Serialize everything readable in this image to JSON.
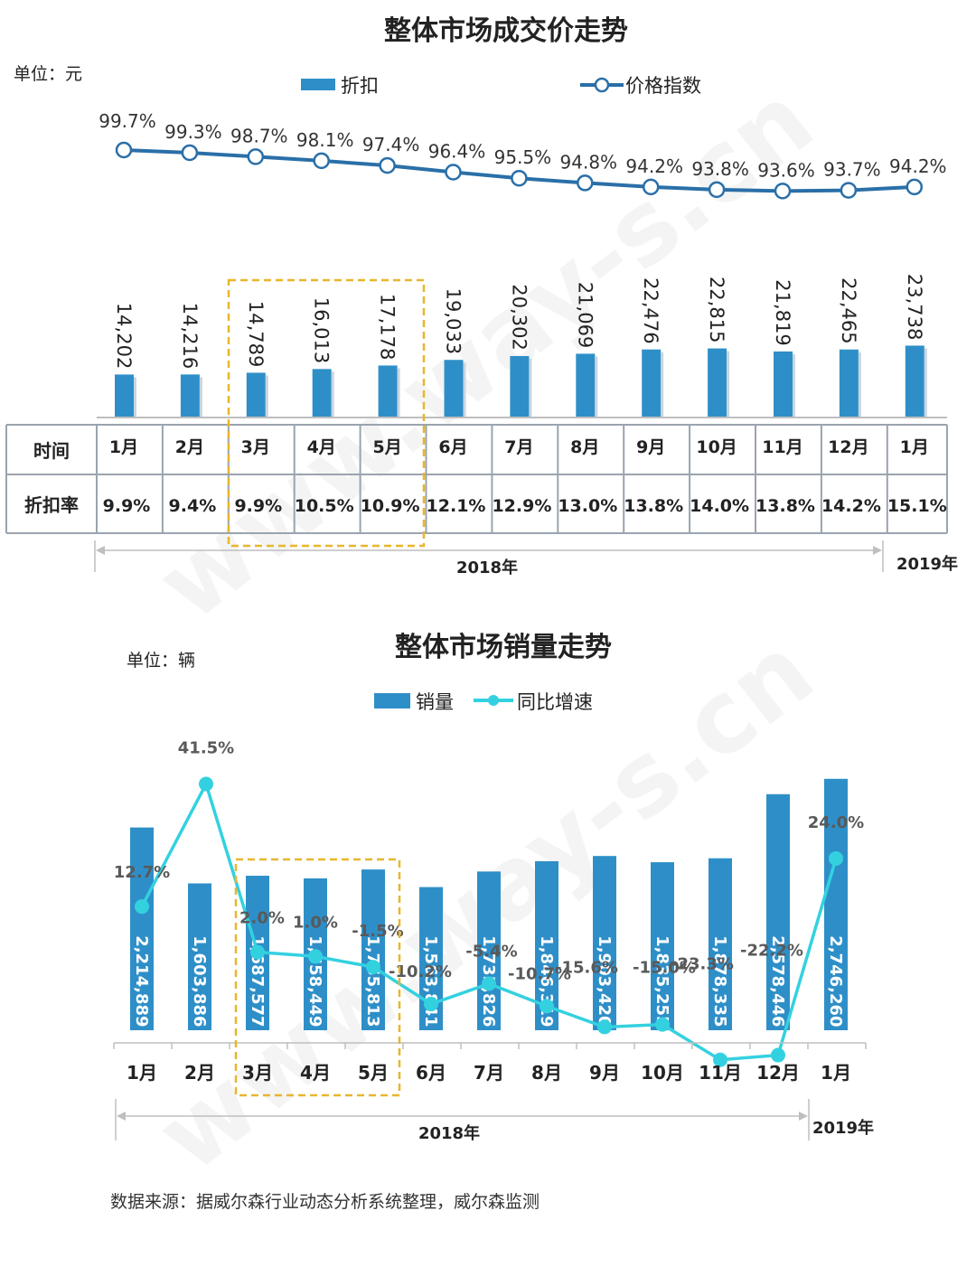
{
  "price_chart": {
    "title": "整体市场成交价走势",
    "unit": "单位：元",
    "legend": {
      "bar": "折扣",
      "line": "价格指数"
    },
    "table_headers": {
      "time": "时间",
      "rate": "折扣率"
    },
    "year_labels": {
      "y2018": "2018年",
      "y2019": "2019年"
    },
    "colors": {
      "bar": "#2e8fc8",
      "line": "#2a6fa8",
      "table_border": "#9aa4ae",
      "highlight": "#e8b62c"
    }
  },
  "sales_chart": {
    "title": "整体市场销量走势",
    "unit": "单位：辆",
    "legend": {
      "bar": "销量",
      "line": "同比增速"
    },
    "year_labels": {
      "y2018": "2018年",
      "y2019": "2019年"
    },
    "colors": {
      "bar": "#2e8fc8",
      "line": "#33d1e0",
      "highlight": "#e8b62c"
    }
  },
  "source": "数据来源：据威尔森行业动态分析系统整理，威尔森监测",
  "watermark": "www.way-s.cn",
  "chart_data": [
    {
      "type": "bar",
      "title": "整体市场成交价走势",
      "categories": [
        "1月",
        "2月",
        "3月",
        "4月",
        "5月",
        "6月",
        "7月",
        "8月",
        "9月",
        "10月",
        "11月",
        "12月",
        "1月"
      ],
      "series": [
        {
          "name": "折扣",
          "type": "bar",
          "values": [
            14202,
            14216,
            14789,
            16013,
            17178,
            19033,
            20302,
            21069,
            22476,
            22815,
            21819,
            22465,
            23738
          ],
          "labels": [
            "14,202",
            "14,216",
            "14,789",
            "16,013",
            "17,178",
            "19,033",
            "20,302",
            "21,069",
            "22,476",
            "22,815",
            "21,819",
            "22,465",
            "23,738"
          ]
        },
        {
          "name": "价格指数",
          "type": "line",
          "values": [
            99.7,
            99.3,
            98.7,
            98.1,
            97.4,
            96.4,
            95.5,
            94.8,
            94.2,
            93.8,
            93.6,
            93.7,
            94.2
          ],
          "labels": [
            "99.7%",
            "99.3%",
            "98.7%",
            "98.1%",
            "97.4%",
            "96.4%",
            "95.5%",
            "94.8%",
            "94.2%",
            "93.8%",
            "93.6%",
            "93.7%",
            "94.2%"
          ]
        },
        {
          "name": "折扣率",
          "type": "table",
          "values": [
            9.9,
            9.4,
            9.9,
            10.5,
            10.9,
            12.1,
            12.9,
            13.0,
            13.8,
            14.0,
            13.8,
            14.2,
            15.1
          ],
          "labels": [
            "9.9%",
            "9.4%",
            "9.9%",
            "10.5%",
            "10.9%",
            "12.1%",
            "12.9%",
            "13.0%",
            "13.8%",
            "14.0%",
            "13.8%",
            "14.2%",
            "15.1%"
          ]
        }
      ],
      "highlighted_categories": [
        "3月",
        "4月",
        "5月"
      ],
      "grid": false,
      "legend_position": "top"
    },
    {
      "type": "bar",
      "title": "整体市场销量走势",
      "categories": [
        "1月",
        "2月",
        "3月",
        "4月",
        "5月",
        "6月",
        "7月",
        "8月",
        "9月",
        "10月",
        "11月",
        "12月",
        "1月"
      ],
      "series": [
        {
          "name": "销量",
          "type": "bar",
          "values": [
            2214889,
            1603886,
            1687577,
            1658449,
            1755813,
            1563841,
            1733826,
            1846319,
            1903420,
            1835255,
            1878335,
            2578446,
            2746260
          ],
          "labels": [
            "2,214,889",
            "1,603,886",
            "1,687,577",
            "1,658,449",
            "1,755,813",
            "1,563,841",
            "1,733,826",
            "1,846,319",
            "1,903,420",
            "1,835,255",
            "1,878,335",
            "2,578,446",
            "2,746,260"
          ]
        },
        {
          "name": "同比增速",
          "type": "line",
          "values": [
            12.7,
            41.5,
            2.0,
            1.0,
            -1.5,
            -10.2,
            -5.4,
            -10.7,
            -15.6,
            -15.0,
            -23.3,
            -22.2,
            24.0
          ],
          "labels": [
            "12.7%",
            "41.5%",
            "2.0%",
            "1.0%",
            "-1.5%",
            "-10.2%",
            "-5.4%",
            "-10.7%",
            "-15.6%",
            "-15.0%",
            "-23.3%",
            "-22.2%",
            "24.0%"
          ]
        }
      ],
      "highlighted_categories": [
        "3月",
        "4月",
        "5月"
      ],
      "grid": false,
      "legend_position": "top"
    }
  ]
}
